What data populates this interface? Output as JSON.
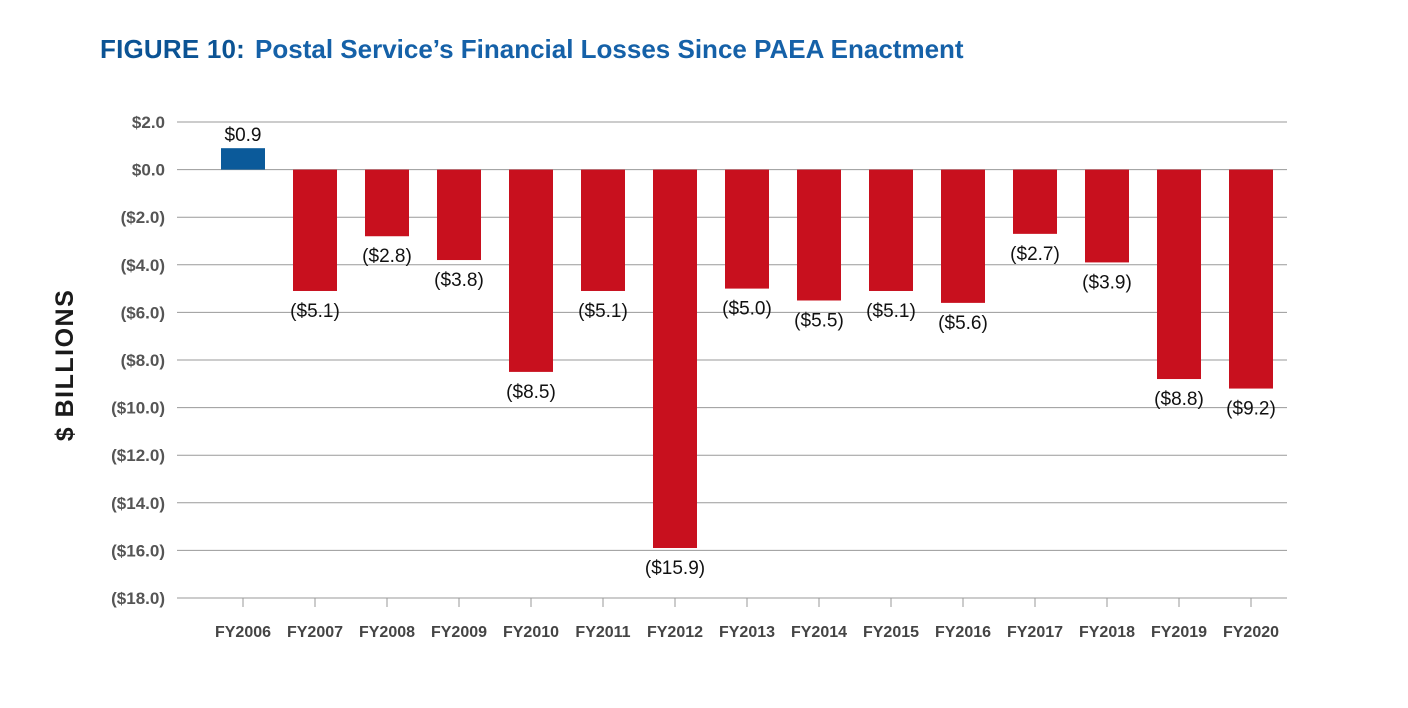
{
  "title": {
    "figure_label": "FIGURE 10:",
    "text": "Postal Service’s Financial Losses Since PAEA Enactment"
  },
  "colors": {
    "positive": "#0b5a9a",
    "negative": "#c8101e",
    "title": "#0b5394",
    "grid": "#9a9a9a"
  },
  "chart_data": {
    "type": "bar",
    "title": "Postal Service’s Financial Losses Since PAEA Enactment",
    "xlabel": "",
    "ylabel": "$ BILLIONS",
    "ylim": [
      -18,
      2
    ],
    "yticks": [
      2,
      0,
      -2,
      -4,
      -6,
      -8,
      -10,
      -12,
      -14,
      -16,
      -18
    ],
    "ytick_labels": [
      "$2.0",
      "$0.0",
      "($2.0)",
      "($4.0)",
      "($6.0)",
      "($8.0)",
      "($10.0)",
      "($12.0)",
      "($14.0)",
      "($16.0)",
      "($18.0)"
    ],
    "categories": [
      "FY2006",
      "FY2007",
      "FY2008",
      "FY2009",
      "FY2010",
      "FY2011",
      "FY2012",
      "FY2013",
      "FY2014",
      "FY2015",
      "FY2016",
      "FY2017",
      "FY2018",
      "FY2019",
      "FY2020"
    ],
    "values": [
      0.9,
      -5.1,
      -2.8,
      -3.8,
      -8.5,
      -5.1,
      -15.9,
      -5.0,
      -5.5,
      -5.1,
      -5.6,
      -2.7,
      -3.9,
      -8.8,
      -9.2
    ],
    "data_labels": [
      "$0.9",
      "($5.1)",
      "($2.8)",
      "($3.8)",
      "($8.5)",
      "($5.1)",
      "($15.9)",
      "($5.0)",
      "($5.5)",
      "($5.1)",
      "($5.6)",
      "($2.7)",
      "($3.9)",
      "($8.8)",
      "($9.2)"
    ],
    "grid": true,
    "legend": "none"
  }
}
